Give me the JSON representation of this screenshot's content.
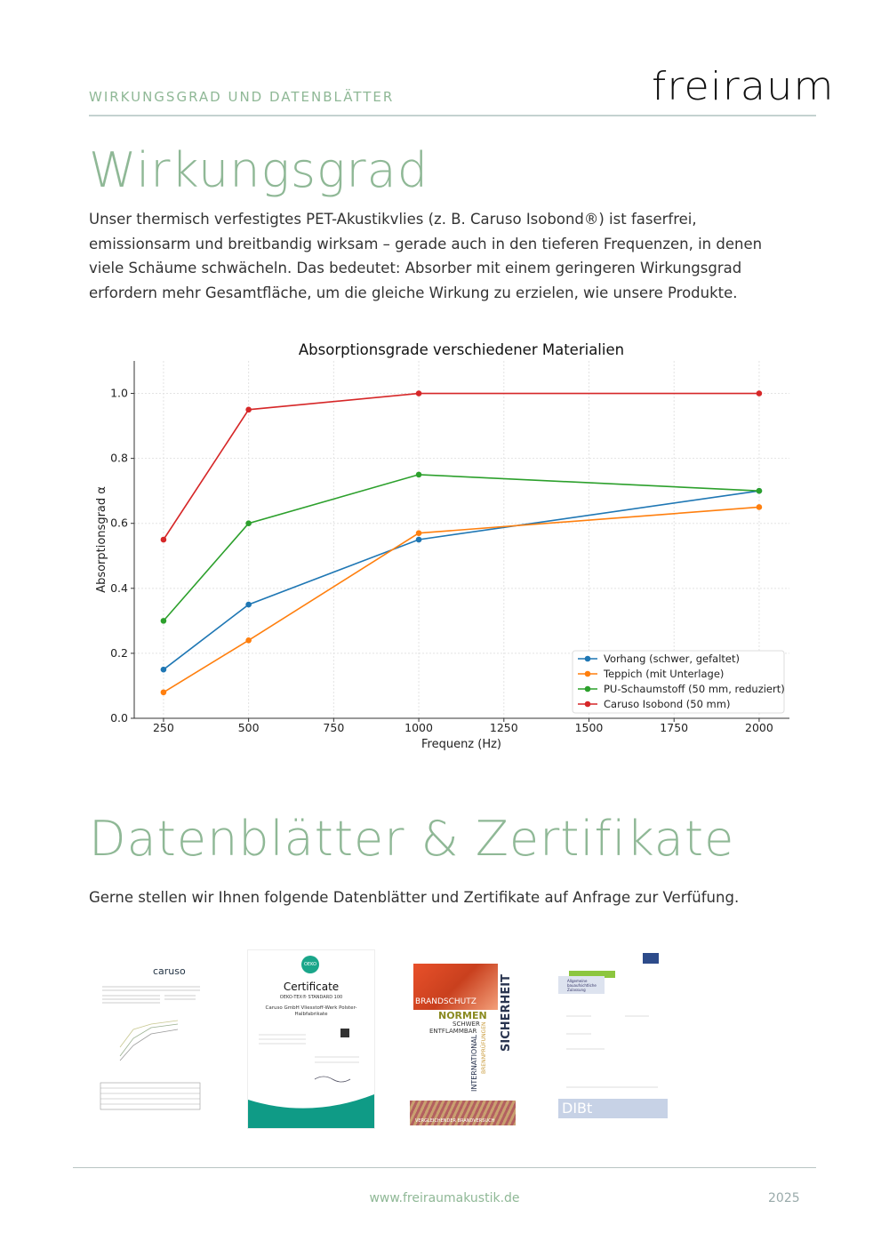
{
  "header": {
    "kicker": "WIRKUNGSGRAD UND DATENBLÄTTER",
    "logo": "freiraum"
  },
  "section1": {
    "title": "Wirkungsgrad",
    "paragraph": "Unser thermisch verfestigtes PET-Akustikvlies (z. B. Caruso Isobond®) ist faserfrei, emissionsarm und breitbandig wirksam – gerade auch in den tieferen Frequenzen, in denen viele Schäume schwächeln. Das bedeutet: Absorber mit einem geringeren Wirkungsgrad erfordern mehr Gesamtfläche, um die gleiche Wirkung zu erzielen, wie unsere Produkte."
  },
  "chart_data": {
    "type": "line",
    "title": "Absorptionsgrade verschiedener Materialien",
    "xlabel": "Frequenz (Hz)",
    "ylabel": "Absorptionsgrad α",
    "x": [
      250,
      500,
      1000,
      2000
    ],
    "xticks": [
      250,
      500,
      750,
      1000,
      1250,
      1500,
      1750,
      2000
    ],
    "yticks": [
      "0.0",
      "0.2",
      "0.4",
      "0.6",
      "0.8",
      "1.0"
    ],
    "xlim": [
      164,
      2089
    ],
    "ylim": [
      0,
      1.1
    ],
    "grid": true,
    "legend_position": "lower-right",
    "series": [
      {
        "name": "Vorhang (schwer, gefaltet)",
        "color": "#1f77b4",
        "values": [
          0.15,
          0.35,
          0.55,
          0.7
        ]
      },
      {
        "name": "Teppich (mit Unterlage)",
        "color": "#ff7f0e",
        "values": [
          0.08,
          0.24,
          0.57,
          0.65
        ]
      },
      {
        "name": "PU-Schaumstoff (50 mm, reduziert)",
        "color": "#2ca02c",
        "values": [
          0.3,
          0.6,
          0.75,
          0.7
        ]
      },
      {
        "name": "Caruso Isobond (50 mm)",
        "color": "#d62728",
        "values": [
          0.55,
          0.95,
          1.0,
          1.0
        ]
      }
    ]
  },
  "section2": {
    "title": "Datenblätter & Zertifikate",
    "paragraph": "Gerne stellen wir Ihnen folgende Datenblätter und Zertifikate auf Anfrage zur Verfüfung.",
    "documents": [
      {
        "logo": "caruso"
      },
      {
        "title": "Certificate",
        "subtitle": "OEKO-TEX® STANDARD 100",
        "company": "Caruso GmbH Vliesstoff-Werk Polster-",
        "company2": "Halbfabrikate",
        "badge": "OEKO TEX"
      },
      {
        "label1": "BRANDSCHUTZ",
        "label2": "NORMEN",
        "label3": "SCHWER",
        "label4": "ENTFLAMMBAR",
        "side1": "INTERNATIONAL",
        "side2": "BRENNPRÜFUNGEN",
        "side3": "SICHERHEIT",
        "bottom": "VERGLEICHENDER BRANDVERSUCH"
      },
      {
        "box": "Allgemeine bauaufsichtliche Zulassung",
        "logo": "DIBt"
      }
    ]
  },
  "footer": {
    "url": "www.freiraumakustik.de",
    "year": "2025"
  },
  "colors": {
    "accent": "#8fb896",
    "rule": "#c4d2d0"
  }
}
